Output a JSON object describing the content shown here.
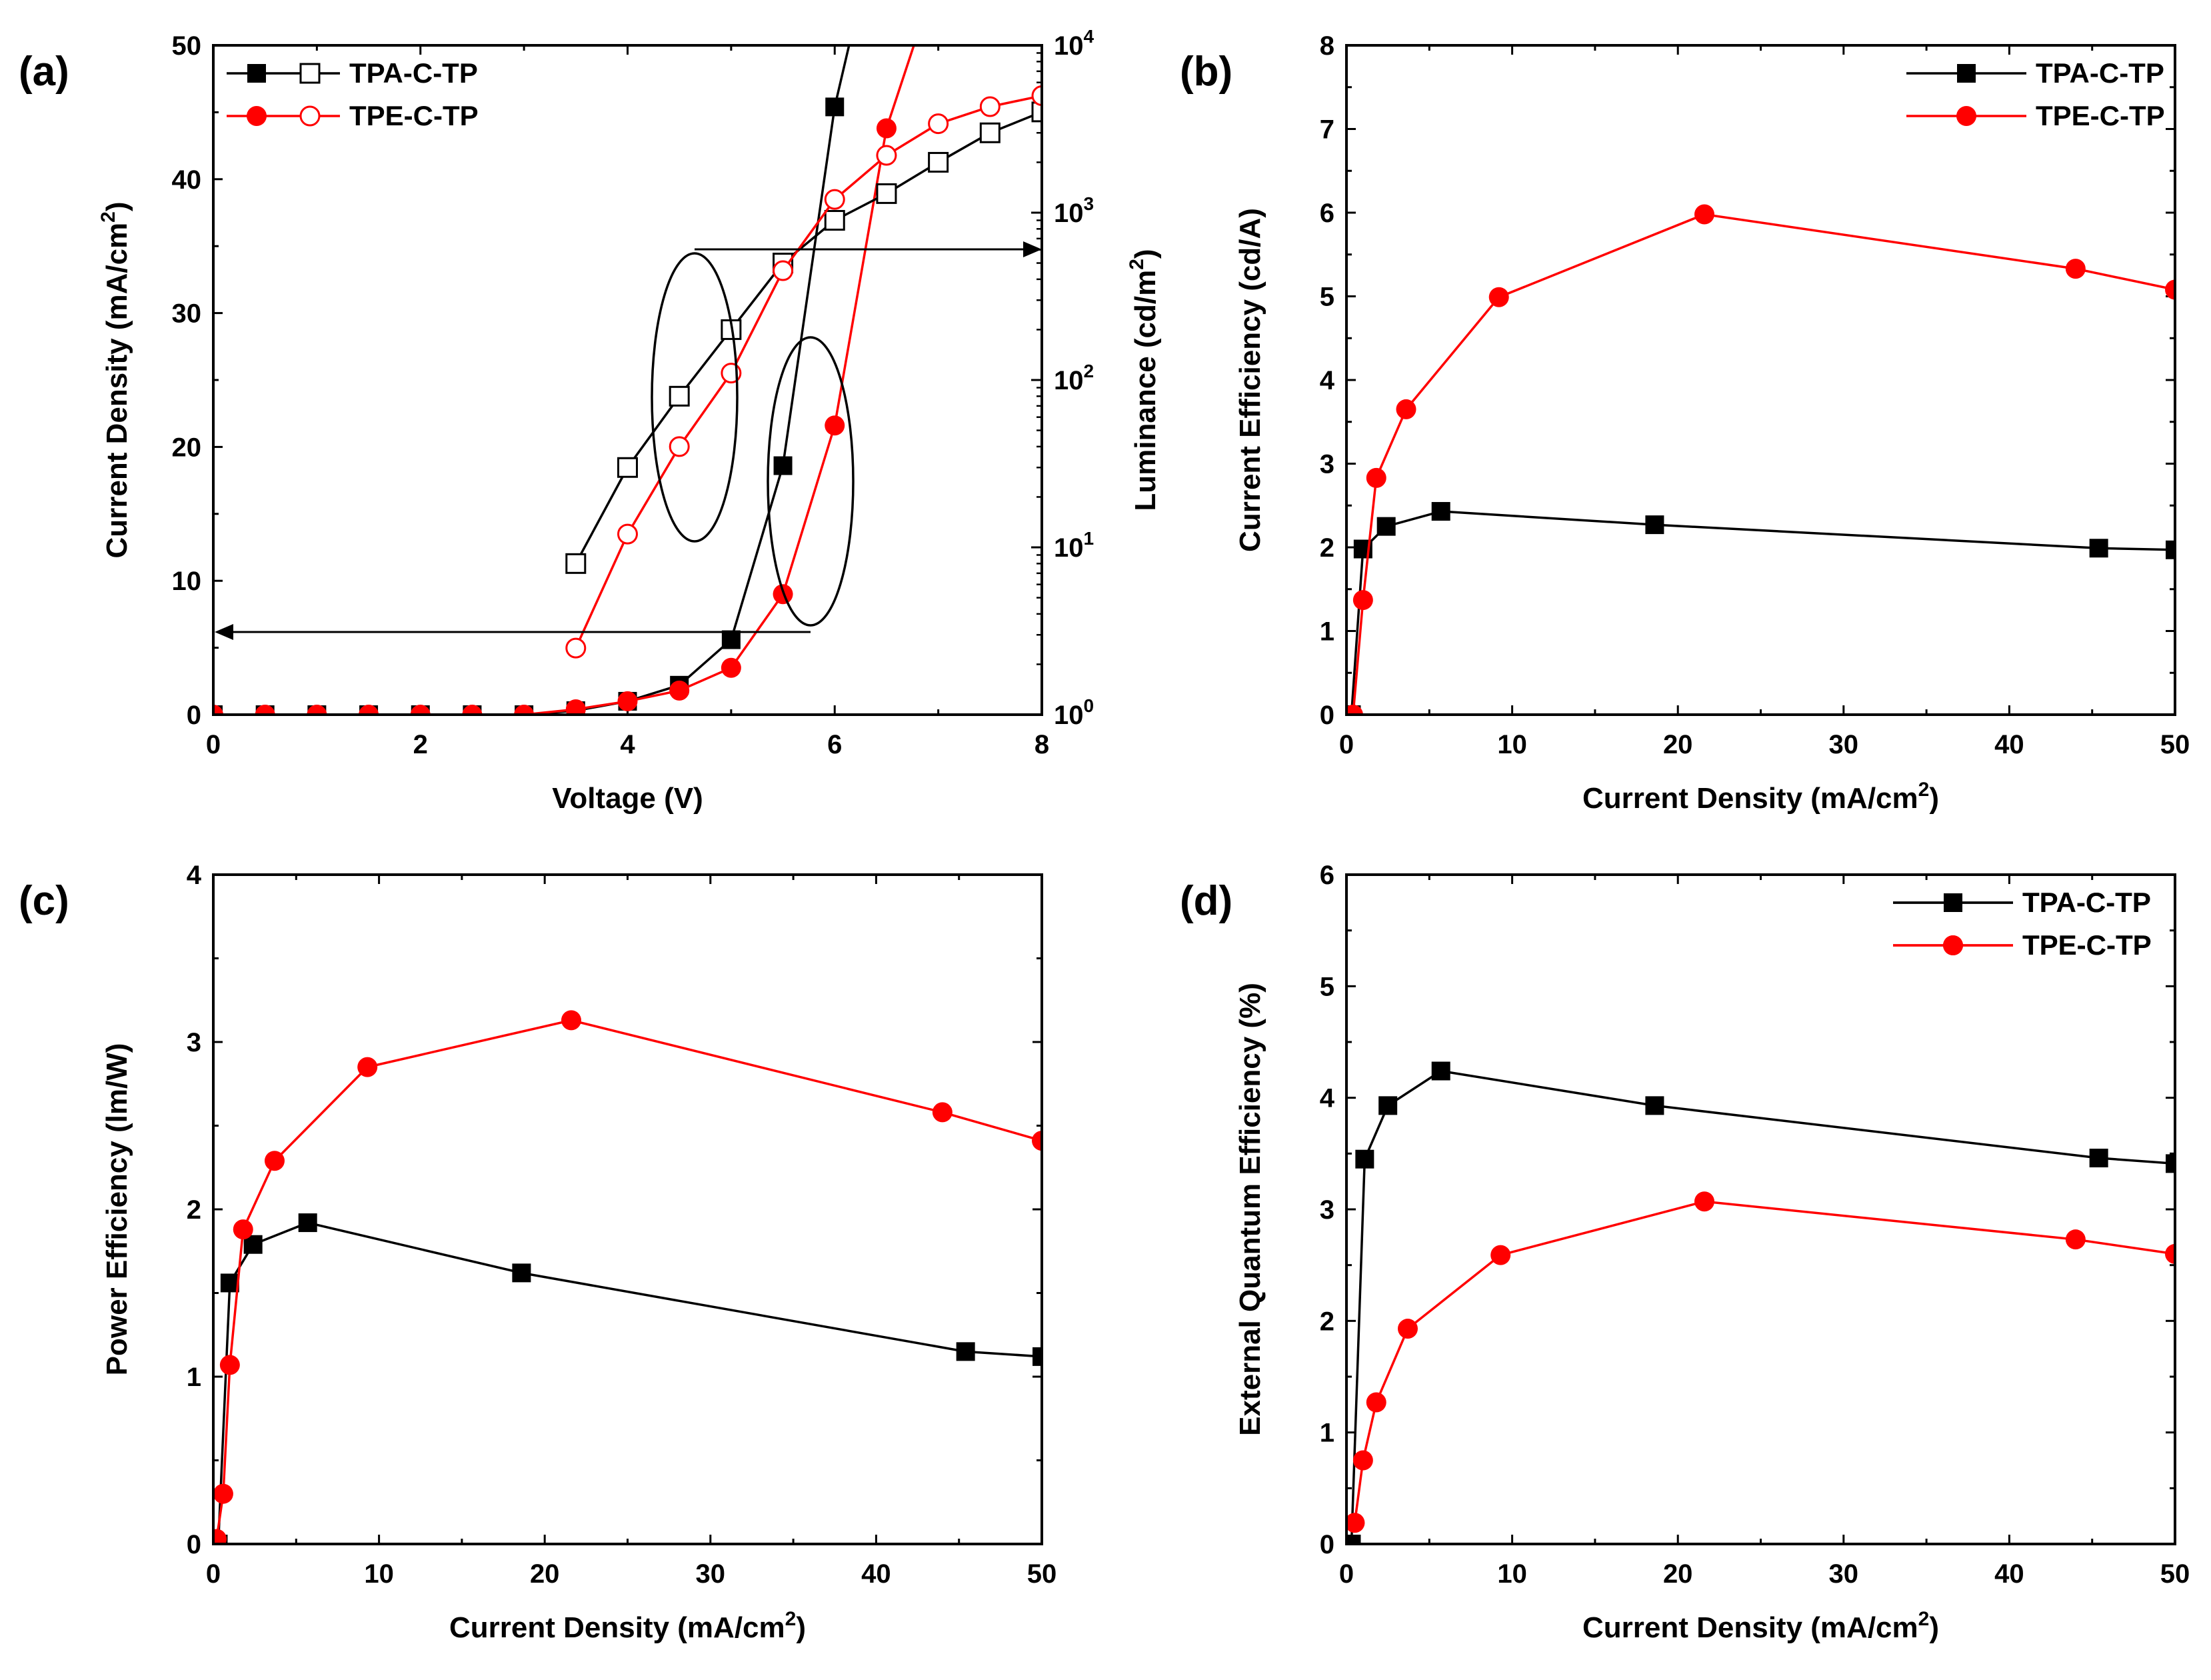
{
  "chart_data": [
    {
      "panel_label": "(a)",
      "type": "line",
      "xlabel": "Voltage (V)",
      "ylabel": "Current Density (mA/cm2)",
      "ylabel_base": "Current Density (mA/cm",
      "ylabel_sup": "2",
      "ylabel_tail": ")",
      "y2label": "Luminance (cd/m2)",
      "y2label_base": "Luminance (cd/m",
      "y2label_sup": "2",
      "y2label_tail": ")",
      "xlim": [
        0,
        8
      ],
      "ylim": [
        0,
        50
      ],
      "y2lim": [
        1,
        10000
      ],
      "y2scale": "log",
      "xticks": [
        "0",
        "2",
        "4",
        "6",
        "8"
      ],
      "yticks": [
        "0",
        "10",
        "20",
        "30",
        "40",
        "50"
      ],
      "y2ticks": [
        {
          "base": "10",
          "exp": "0"
        },
        {
          "base": "10",
          "exp": "1"
        },
        {
          "base": "10",
          "exp": "2"
        },
        {
          "base": "10",
          "exp": "3"
        },
        {
          "base": "10",
          "exp": "4"
        }
      ],
      "legend_position": "top-left",
      "series": [
        {
          "name": "TPA-C-TP",
          "quantity": "Current Density",
          "axis": "left",
          "marker": "filled-square",
          "color": "#000000",
          "x": [
            0,
            0.5,
            1,
            1.5,
            2,
            2.5,
            3,
            3.5,
            4,
            4.5,
            5,
            5.5,
            6,
            6.5
          ],
          "y": [
            0,
            0,
            0,
            0,
            0,
            0,
            0,
            0.3,
            1.0,
            2.2,
            5.6,
            18.6,
            45.4,
            62
          ]
        },
        {
          "name": "TPE-C-TP",
          "quantity": "Current Density",
          "axis": "left",
          "marker": "filled-circle",
          "color": "#ff0000",
          "x": [
            0,
            0.5,
            1,
            1.5,
            2,
            2.5,
            3,
            3.5,
            4,
            4.5,
            5,
            5.5,
            6,
            6.5,
            6.85
          ],
          "y": [
            0,
            0,
            0,
            0,
            0,
            0,
            0,
            0.4,
            1.0,
            1.8,
            3.5,
            9.0,
            21.6,
            43.8,
            52
          ]
        },
        {
          "name": "TPA-C-TP",
          "quantity": "Luminance",
          "axis": "right",
          "marker": "open-square",
          "color": "#000000",
          "x": [
            3.5,
            4,
            4.5,
            5,
            5.5,
            6,
            6.5,
            7,
            7.5,
            8
          ],
          "y": [
            8,
            30,
            80,
            200,
            500,
            900,
            1300,
            2000,
            3000,
            4000
          ]
        },
        {
          "name": "TPE-C-TP",
          "quantity": "Luminance",
          "axis": "right",
          "marker": "open-circle",
          "color": "#ff0000",
          "x": [
            3.5,
            4,
            4.5,
            5,
            5.5,
            6,
            6.5,
            7,
            7.5,
            8
          ],
          "y": [
            2.5,
            12,
            40,
            110,
            450,
            1200,
            2200,
            3400,
            4300,
            5000
          ]
        }
      ]
    },
    {
      "panel_label": "(b)",
      "type": "line",
      "xlabel": "Current Density (mA/cm2)",
      "xlabel_base": "Current Density (mA/cm",
      "xlabel_sup": "2",
      "xlabel_tail": ")",
      "ylabel": "Current Efficiency (cd/A)",
      "xlim": [
        0,
        50
      ],
      "ylim": [
        0,
        8
      ],
      "xticks": [
        "0",
        "10",
        "20",
        "30",
        "40",
        "50"
      ],
      "yticks": [
        "0",
        "1",
        "2",
        "3",
        "4",
        "5",
        "6",
        "7",
        "8"
      ],
      "legend_position": "top-right",
      "series": [
        {
          "name": "TPA-C-TP",
          "marker": "filled-square",
          "color": "#000000",
          "x": [
            0.3,
            1.0,
            2.4,
            5.7,
            18.6,
            45.4,
            50
          ],
          "y": [
            0.0,
            1.98,
            2.25,
            2.43,
            2.27,
            1.99,
            1.97
          ]
        },
        {
          "name": "TPE-C-TP",
          "marker": "filled-circle",
          "color": "#ff0000",
          "x": [
            0.4,
            1.0,
            1.8,
            3.6,
            9.2,
            21.6,
            44.0,
            50
          ],
          "y": [
            0.0,
            1.37,
            2.83,
            3.65,
            4.99,
            5.98,
            5.33,
            5.08
          ]
        }
      ]
    },
    {
      "panel_label": "(c)",
      "type": "line",
      "xlabel": "Current Density (mA/cm2)",
      "xlabel_base": "Current Density (mA/cm",
      "xlabel_sup": "2",
      "xlabel_tail": ")",
      "ylabel": "Power Efficiency (lm/W)",
      "xlim": [
        0,
        50
      ],
      "ylim": [
        0,
        4
      ],
      "xticks": [
        "0",
        "10",
        "20",
        "30",
        "40",
        "50"
      ],
      "yticks": [
        "0",
        "1",
        "2",
        "3",
        "4"
      ],
      "legend_position": "top-right",
      "series": [
        {
          "name": "TPA-C-TP",
          "marker": "filled-square",
          "color": "#000000",
          "x": [
            0.3,
            1.0,
            2.4,
            5.7,
            18.6,
            45.4,
            50
          ],
          "y": [
            0.0,
            1.56,
            1.79,
            1.92,
            1.62,
            1.15,
            1.12
          ]
        },
        {
          "name": "TPE-C-TP",
          "marker": "filled-circle",
          "color": "#ff0000",
          "x": [
            0.2,
            0.6,
            1.0,
            1.8,
            3.7,
            9.3,
            21.6,
            44.0,
            50
          ],
          "y": [
            0.03,
            0.3,
            1.07,
            1.88,
            2.29,
            2.85,
            3.13,
            2.58,
            2.41
          ]
        }
      ]
    },
    {
      "panel_label": "(d)",
      "type": "line",
      "xlabel": "Current Density (mA/cm2)",
      "xlabel_base": "Current Density (mA/cm",
      "xlabel_sup": "2",
      "xlabel_tail": ")",
      "ylabel": "External Quantum Efficiency (%)",
      "xlim": [
        0,
        50
      ],
      "ylim": [
        0,
        6
      ],
      "xticks": [
        "0",
        "10",
        "20",
        "30",
        "40",
        "50"
      ],
      "yticks": [
        "0",
        "1",
        "2",
        "3",
        "4",
        "5",
        "6"
      ],
      "legend_position": "top-right",
      "series": [
        {
          "name": "TPA-C-TP",
          "marker": "filled-square",
          "color": "#000000",
          "x": [
            0.3,
            1.1,
            2.5,
            5.7,
            18.6,
            45.4,
            50
          ],
          "y": [
            0.0,
            3.45,
            3.93,
            4.24,
            3.93,
            3.46,
            3.41
          ]
        },
        {
          "name": "TPE-C-TP",
          "marker": "filled-circle",
          "color": "#ff0000",
          "x": [
            0.5,
            1.0,
            1.8,
            3.7,
            9.3,
            21.6,
            44.0,
            50
          ],
          "y": [
            0.19,
            0.75,
            1.27,
            1.93,
            2.59,
            3.07,
            2.73,
            2.6
          ]
        }
      ]
    }
  ]
}
